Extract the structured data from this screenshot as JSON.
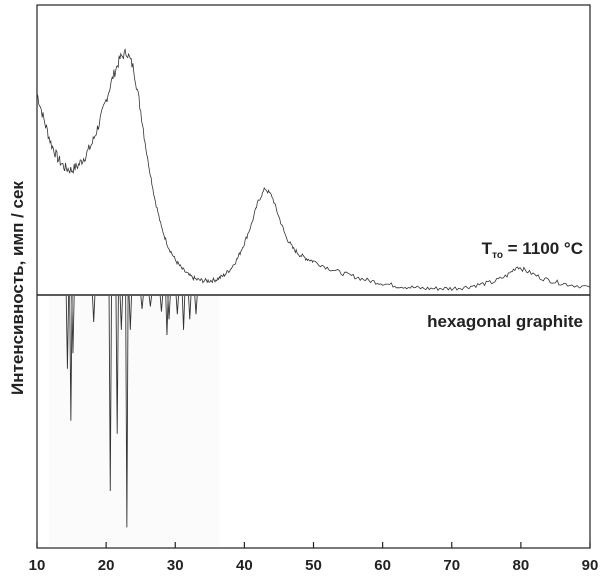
{
  "chart_data": {
    "type": "line",
    "ylabel": "Интенсивность, имп / сек",
    "xlabel": "",
    "xlim": [
      10,
      90
    ],
    "x_ticks": [
      "10",
      "20",
      "30",
      "40",
      "50",
      "60",
      "70",
      "80",
      "90"
    ],
    "grid": false,
    "annotations": {
      "temperature_T": "T",
      "temperature_sub": "то",
      "temperature_value": " = 1100 °C",
      "reference_label": "hexagonal graphite"
    },
    "series": [
      {
        "color": "#333333",
        "x": [
          10,
          11,
          12,
          13,
          14,
          15,
          16,
          17,
          18,
          19,
          20,
          21,
          22,
          23,
          24,
          25,
          26,
          27,
          28,
          29,
          30,
          31,
          32,
          33,
          34,
          35,
          36,
          37,
          38,
          39,
          40,
          41,
          42,
          43,
          44,
          45,
          46,
          47,
          48,
          49,
          50,
          52,
          54,
          56,
          58,
          60,
          62,
          64,
          66,
          68,
          70,
          72,
          74,
          76,
          78,
          79.5,
          81,
          83,
          85,
          87,
          90
        ],
        "y": [
          1.55,
          1.35,
          1.17,
          1.05,
          0.98,
          0.96,
          1.0,
          1.07,
          1.17,
          1.32,
          1.5,
          1.68,
          1.82,
          1.87,
          1.74,
          1.42,
          1.05,
          0.75,
          0.52,
          0.37,
          0.27,
          0.2,
          0.15,
          0.12,
          0.11,
          0.11,
          0.12,
          0.15,
          0.2,
          0.28,
          0.4,
          0.54,
          0.72,
          0.82,
          0.76,
          0.6,
          0.45,
          0.36,
          0.31,
          0.28,
          0.26,
          0.21,
          0.17,
          0.14,
          0.11,
          0.09,
          0.07,
          0.06,
          0.05,
          0.05,
          0.05,
          0.06,
          0.08,
          0.1,
          0.15,
          0.22,
          0.18,
          0.13,
          0.1,
          0.08,
          0.06
        ]
      }
    ],
    "reference_peaks": {
      "name": "hexagonal graphite",
      "x": [
        14.4,
        14.9,
        15.2,
        18.2,
        20.6,
        21.6,
        22.2,
        23.0,
        23.5,
        25.2,
        26.4,
        28.0,
        28.8,
        29.1,
        30.3,
        31.2,
        32.1,
        33.0
      ],
      "intensity": [
        0.28,
        0.48,
        0.22,
        0.1,
        0.75,
        0.53,
        0.13,
        0.89,
        0.13,
        0.05,
        0.04,
        0.06,
        0.15,
        0.09,
        0.07,
        0.13,
        0.09,
        0.07
      ]
    }
  }
}
